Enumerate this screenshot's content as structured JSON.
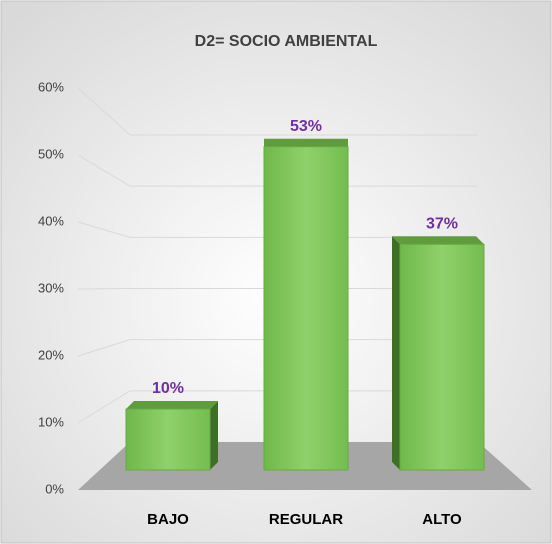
{
  "chart_data": {
    "type": "bar3d",
    "title": "D2= SOCIO AMBIENTAL",
    "categories": [
      "BAJO",
      "REGULAR",
      "ALTO"
    ],
    "values": [
      10,
      53,
      37
    ],
    "value_labels": [
      "10%",
      "53%",
      "37%"
    ],
    "color": "#7cc35a",
    "value_label_color": "#7030a0",
    "ylim": [
      0,
      60
    ],
    "yticks": [
      {
        "value": 0,
        "label": "0%"
      },
      {
        "value": 10,
        "label": "10%"
      },
      {
        "value": 20,
        "label": "20%"
      },
      {
        "value": 30,
        "label": "30%"
      },
      {
        "value": 40,
        "label": "40%"
      },
      {
        "value": 50,
        "label": "50%"
      },
      {
        "value": 60,
        "label": "60%"
      }
    ],
    "grid": true
  }
}
